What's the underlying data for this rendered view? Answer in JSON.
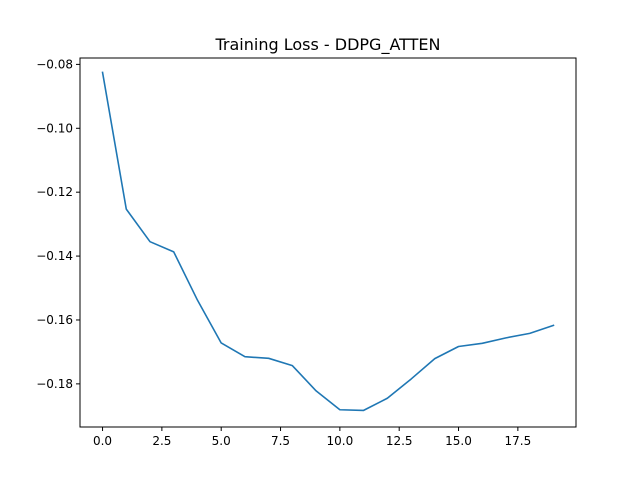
{
  "chart_data": {
    "type": "line",
    "title": "Training Loss - DDPG_ATTEN",
    "xlabel": "",
    "ylabel": "",
    "xlim": [
      -0.95,
      19.95
    ],
    "ylim": [
      -0.1935,
      -0.078
    ],
    "x_ticks": [
      0.0,
      2.5,
      5.0,
      7.5,
      10.0,
      12.5,
      15.0,
      17.5
    ],
    "x_tick_labels": [
      "0.0",
      "2.5",
      "5.0",
      "7.5",
      "10.0",
      "12.5",
      "15.0",
      "17.5"
    ],
    "y_ticks": [
      -0.08,
      -0.1,
      -0.12,
      -0.14,
      -0.16,
      -0.18
    ],
    "y_tick_labels": [
      "−0.08",
      "−0.10",
      "−0.12",
      "−0.14",
      "−0.16",
      "−0.18"
    ],
    "grid": false,
    "legend": "none",
    "series": [
      {
        "color": "#1f77b4",
        "x": [
          0,
          1,
          2,
          3,
          4,
          5,
          6,
          7,
          8,
          9,
          10,
          11,
          12,
          13,
          14,
          15,
          16,
          17,
          18,
          19
        ],
        "y": [
          -0.0825,
          -0.1253,
          -0.1355,
          -0.1387,
          -0.1538,
          -0.1672,
          -0.1715,
          -0.172,
          -0.1743,
          -0.1822,
          -0.1881,
          -0.1883,
          -0.1845,
          -0.1785,
          -0.1721,
          -0.1683,
          -0.1673,
          -0.1656,
          -0.1642,
          -0.1617
        ]
      }
    ]
  }
}
